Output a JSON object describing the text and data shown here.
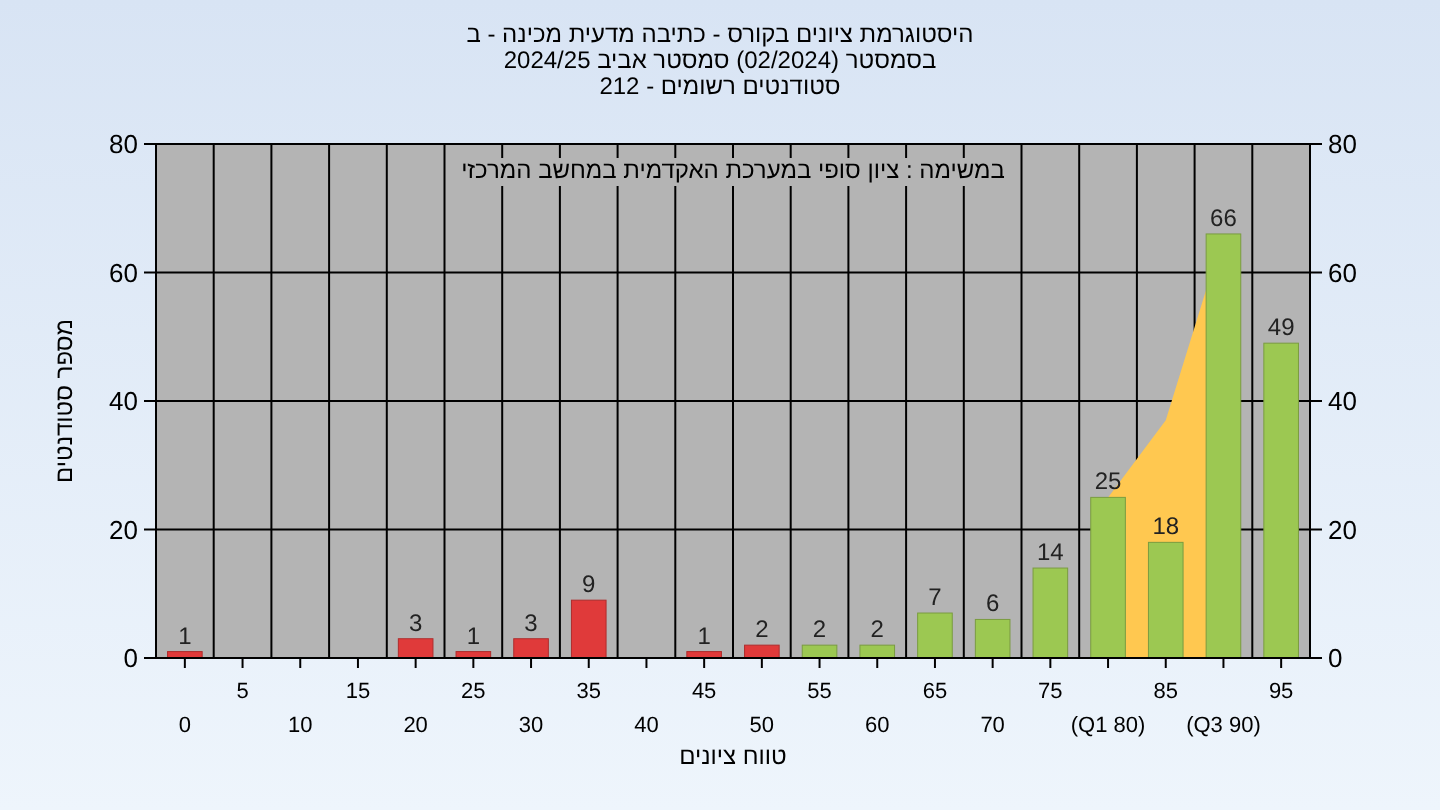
{
  "chart_data": {
    "type": "bar",
    "title": "היסטוגרמת ציונים בקורס - כתיבה מדעית מכינה - ב",
    "subtitle": "בסמסטר  (02/2024)  סמסטר אביב 2024/25\nסטודנטים רשומים - 212",
    "xlabel": "טווח ציונים",
    "ylabel": "מספר סטודנטים",
    "annotations": [
      "במשימה : ציון סופי במערכת האקדמית במחשב המרכזי"
    ],
    "categories": [
      "0",
      "5",
      "10",
      "15",
      "20",
      "25",
      "30",
      "35",
      "40",
      "45",
      "50",
      "55",
      "60",
      "65",
      "70",
      "75",
      "(Q1 80)",
      "85",
      "(Q3 90)",
      "95"
    ],
    "series": [
      {
        "type": "area",
        "color": "#ffc850",
        "values": [
          null,
          null,
          null,
          null,
          null,
          null,
          null,
          null,
          null,
          null,
          null,
          null,
          null,
          null,
          null,
          null,
          25,
          37,
          66,
          null
        ]
      },
      {
        "values": [
          1,
          0,
          0,
          0,
          3,
          1,
          3,
          9,
          0,
          1,
          2,
          2,
          2,
          7,
          6,
          14,
          25,
          18,
          66,
          49
        ],
        "colors": [
          "#e03a3a",
          "#e03a3a",
          "#e03a3a",
          "#e03a3a",
          "#e03a3a",
          "#e03a3a",
          "#e03a3a",
          "#e03a3a",
          "#e03a3a",
          "#e03a3a",
          "#e03a3a",
          "#9cc852",
          "#9cc852",
          "#9cc852",
          "#9cc852",
          "#9cc852",
          "#9cc852",
          "#9cc852",
          "#9cc852",
          "#9cc852"
        ],
        "value_labels": [
          "1",
          null,
          null,
          null,
          "3",
          "1",
          "3",
          "9",
          null,
          "1",
          "2",
          "2",
          "2",
          "7",
          "6",
          "14",
          "25",
          "18",
          "66",
          "49"
        ]
      }
    ],
    "ylim": [
      0,
      80
    ],
    "yticks": [
      0,
      20,
      40,
      60,
      80
    ],
    "y2lim": [
      0,
      80
    ],
    "y2ticks": [
      0,
      20,
      40,
      60,
      80
    ],
    "grid": true
  }
}
